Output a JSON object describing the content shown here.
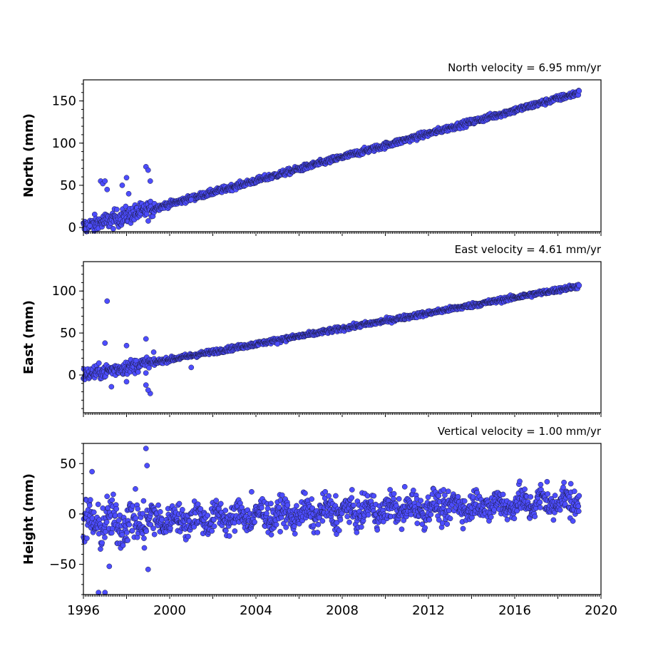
{
  "chart_data": [
    {
      "type": "scatter",
      "title": "North velocity = 6.95 mm/yr",
      "ylabel": "North (mm)",
      "xlim": [
        1996,
        2020
      ],
      "ylim": [
        -5,
        175
      ],
      "yticks": [
        0,
        50,
        100,
        150
      ],
      "velocity_mm_per_yr": 6.95,
      "start_value": 0,
      "noise": 2.5,
      "outliers": [
        [
          1996.05,
          -2
        ],
        [
          1996.3,
          2
        ],
        [
          1996.8,
          55
        ],
        [
          1996.9,
          52
        ],
        [
          1997,
          55
        ],
        [
          1997.1,
          45
        ],
        [
          1997.8,
          50
        ],
        [
          1998,
          59
        ],
        [
          1998.1,
          40
        ],
        [
          1998.9,
          72
        ],
        [
          1999,
          68
        ],
        [
          1999.1,
          55
        ],
        [
          2001,
          33
        ]
      ]
    },
    {
      "type": "scatter",
      "title": "East velocity = 4.61 mm/yr",
      "ylabel": "East (mm)",
      "xlim": [
        1996,
        2020
      ],
      "ylim": [
        -45,
        135
      ],
      "yticks": [
        0,
        50,
        100
      ],
      "velocity_mm_per_yr": 4.61,
      "start_value": 0,
      "noise": 2,
      "outliers": [
        [
          1997.1,
          88
        ],
        [
          1997,
          38
        ],
        [
          1997.3,
          -14
        ],
        [
          1998,
          35
        ],
        [
          1998,
          -8
        ],
        [
          1998.9,
          43
        ],
        [
          1998.9,
          -12
        ],
        [
          1999.1,
          -22
        ],
        [
          1999,
          -18
        ],
        [
          2001,
          9
        ],
        [
          2005,
          37
        ]
      ]
    },
    {
      "type": "scatter",
      "title": "Vertical velocity = 1.00 mm/yr",
      "ylabel": "Height (mm)",
      "xlim": [
        1996,
        2020
      ],
      "ylim": [
        -80,
        70
      ],
      "yticks": [
        -50,
        0,
        50
      ],
      "xticks": [
        "1996",
        "2000",
        "2004",
        "2008",
        "2012",
        "2016",
        "2020"
      ],
      "velocity_mm_per_yr": 1.0,
      "start_value": -10,
      "noise": 10,
      "outliers": [
        [
          1996.4,
          42
        ],
        [
          1996.7,
          -78
        ],
        [
          1997,
          -78
        ],
        [
          1997.2,
          -52
        ],
        [
          1998.9,
          65
        ],
        [
          1998.95,
          48
        ],
        [
          1999,
          -55
        ],
        [
          2003.8,
          22
        ],
        [
          2007.7,
          18
        ],
        [
          2010.9,
          27
        ],
        [
          2012.7,
          24
        ],
        [
          2017.5,
          32
        ],
        [
          2018.6,
          30
        ]
      ]
    }
  ]
}
